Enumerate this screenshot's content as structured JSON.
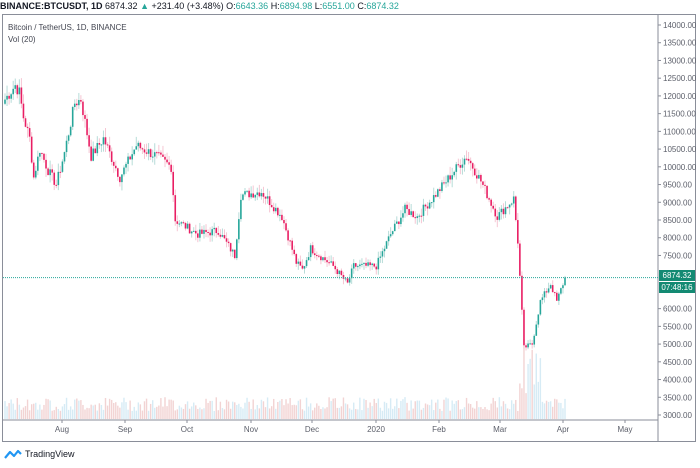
{
  "header": {
    "symbol": "BINANCE:BTCUSDT, 1D",
    "last": "6874.32",
    "change_arrow": "▲",
    "change": "+231.40 (+3.48%)",
    "o_label": "O:",
    "o_value": "6643.36",
    "h_label": "H:",
    "h_value": "6894.98",
    "l_label": "L:",
    "l_value": "6551.00",
    "c_label": "C:",
    "c_value": "6874.32"
  },
  "legend": {
    "series_title": "Bitcoin / TetherUS, 1D, BINANCE",
    "indicator": "Vol (20)"
  },
  "price_axis": {
    "ticks": [
      "14000.00",
      "13500.00",
      "13000.00",
      "12500.00",
      "12000.00",
      "11500.00",
      "11000.00",
      "10500.00",
      "10000.00",
      "9500.00",
      "9000.00",
      "8500.00",
      "8000.00",
      "7500.00",
      "6000.00",
      "5500.00",
      "5000.00",
      "4500.00",
      "4000.00",
      "3500.00",
      "3000.00"
    ],
    "last_price_badge": "6874.32",
    "countdown_badge": "07:48:16"
  },
  "footer": {
    "brand": "TradingView"
  },
  "colors": {
    "up": "#26a69a",
    "down": "#ef5350",
    "badge": "#138a73",
    "vol_up": "#d6ebf5",
    "vol_down": "#f2d3d3"
  },
  "chart_data": {
    "type": "candlestick",
    "title": "BINANCE:BTCUSDT, 1D",
    "subtitle": "Bitcoin / TetherUS, 1D, BINANCE",
    "x_ticks": [
      "Aug",
      "Sep",
      "Oct",
      "Nov",
      "Dec",
      "2020",
      "Feb",
      "Mar",
      "Apr",
      "May"
    ],
    "y_ticks": [
      3000,
      3500,
      4000,
      4500,
      5000,
      5500,
      6000,
      6500,
      7000,
      7500,
      8000,
      8500,
      9000,
      9500,
      10000,
      10500,
      11000,
      11500,
      12000,
      12500,
      13000,
      13500,
      14000
    ],
    "ylim": [
      3000,
      14000
    ],
    "last_close": 6874.32,
    "ohlc_last": {
      "open": 6643.36,
      "high": 6894.98,
      "low": 6551.0,
      "close": 6874.32,
      "change": 231.4,
      "change_pct": 3.48
    },
    "approx_closes": [
      {
        "date": "Jul 3",
        "close": 11900
      },
      {
        "date": "Jul 8",
        "close": 12300
      },
      {
        "date": "Jul 10",
        "close": 12100
      },
      {
        "date": "Jul 12",
        "close": 11400
      },
      {
        "date": "Jul 15",
        "close": 10800
      },
      {
        "date": "Jul 17",
        "close": 9700
      },
      {
        "date": "Jul 20",
        "close": 10500
      },
      {
        "date": "Jul 24",
        "close": 9900
      },
      {
        "date": "Jul 28",
        "close": 9500
      },
      {
        "date": "Aug 1",
        "close": 10400
      },
      {
        "date": "Aug 6",
        "close": 11800
      },
      {
        "date": "Aug 9",
        "close": 11900
      },
      {
        "date": "Aug 14",
        "close": 10300
      },
      {
        "date": "Aug 20",
        "close": 10800
      },
      {
        "date": "Aug 28",
        "close": 9700
      },
      {
        "date": "Sep 5",
        "close": 10600
      },
      {
        "date": "Sep 15",
        "close": 10300
      },
      {
        "date": "Sep 22",
        "close": 10000
      },
      {
        "date": "Sep 24",
        "close": 8500
      },
      {
        "date": "Oct 5",
        "close": 8100
      },
      {
        "date": "Oct 15",
        "close": 8200
      },
      {
        "date": "Oct 23",
        "close": 7500
      },
      {
        "date": "Oct 26",
        "close": 9200
      },
      {
        "date": "Nov 5",
        "close": 9300
      },
      {
        "date": "Nov 15",
        "close": 8600
      },
      {
        "date": "Nov 22",
        "close": 7300
      },
      {
        "date": "Nov 25",
        "close": 7100
      },
      {
        "date": "Nov 29",
        "close": 7700
      },
      {
        "date": "Dec 10",
        "close": 7200
      },
      {
        "date": "Dec 17",
        "close": 6700
      },
      {
        "date": "Dec 20",
        "close": 7200
      },
      {
        "date": "Dec 31",
        "close": 7200
      },
      {
        "date": "Jan 7",
        "close": 8100
      },
      {
        "date": "Jan 14",
        "close": 8800
      },
      {
        "date": "Jan 20",
        "close": 8600
      },
      {
        "date": "Jan 30",
        "close": 9300
      },
      {
        "date": "Feb 10",
        "close": 10100
      },
      {
        "date": "Feb 13",
        "close": 10300
      },
      {
        "date": "Feb 20",
        "close": 9600
      },
      {
        "date": "Feb 28",
        "close": 8600
      },
      {
        "date": "Mar 7",
        "close": 9100
      },
      {
        "date": "Mar 9",
        "close": 7900
      },
      {
        "date": "Mar 12",
        "close": 4900
      },
      {
        "date": "Mar 16",
        "close": 5000
      },
      {
        "date": "Mar 20",
        "close": 6200
      },
      {
        "date": "Mar 25",
        "close": 6700
      },
      {
        "date": "Mar 28",
        "close": 6200
      },
      {
        "date": "Apr 1",
        "close": 6874
      }
    ],
    "volume_series": "Vol (20)",
    "volume_peak_date": "Mar 12"
  }
}
